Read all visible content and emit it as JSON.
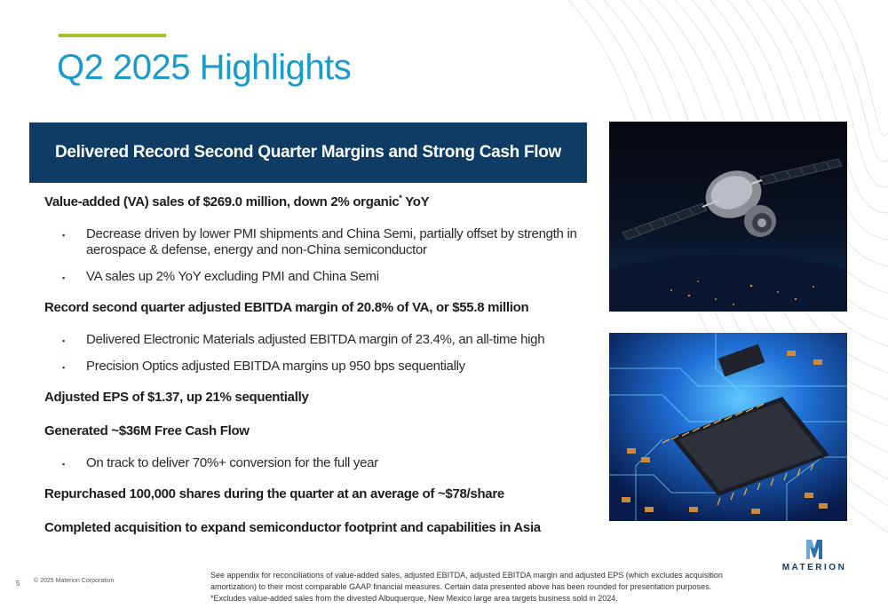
{
  "slide": {
    "title": "Q2 2025 Highlights",
    "banner": "Delivered Record Second Quarter Margins and Strong Cash Flow",
    "page_number": "5",
    "copyright": "© 2025 Materion Corporation"
  },
  "highlights": [
    {
      "heading_main": "Value-added (VA) sales of $269.0 million, down 2% organic",
      "heading_asterisk": "*",
      "heading_tail": " YoY",
      "bullets": [
        "Decrease driven by lower PMI shipments and China Semi, partially offset by strength in aerospace & defense, energy and non-China semiconductor",
        "VA sales up 2% YoY excluding PMI and China Semi"
      ]
    },
    {
      "heading": "Record second quarter adjusted EBITDA margin of 20.8% of VA, or $55.8 million",
      "bullets": [
        "Delivered Electronic Materials adjusted EBITDA margin of 23.4%, an all-time high",
        "Precision Optics adjusted EBITDA margins up 950 bps sequentially"
      ]
    },
    {
      "heading": "Adjusted EPS of $1.37, up 21% sequentially"
    },
    {
      "heading": "Generated ~$36M Free Cash Flow",
      "bullets": [
        "On track to deliver 70%+ conversion for the full year"
      ]
    },
    {
      "heading": "Repurchased 100,000 shares during the quarter at an average of ~$78/share"
    },
    {
      "heading": "Completed acquisition to expand semiconductor footprint and capabilities in Asia"
    }
  ],
  "bullet_marker": "▪",
  "footnote": {
    "line1": "See appendix for reconciliations of value-added sales, adjusted EBITDA, adjusted EBITDA margin and adjusted EPS (which excludes acquisition amortization) to their most comparable GAAP financial measures. Certain data presented above has been rounded for presentation purposes.",
    "line2": "*Excludes value-added sales from the divested Albuquerque, New Mexico large area targets business sold in 2024."
  },
  "logo": {
    "text": "MATERION"
  },
  "images": {
    "top": "satellite-over-earth",
    "bottom": "circuit-board-chip"
  },
  "colors": {
    "title": "#1a9bc9",
    "banner": "#0e3c64",
    "accent": "#a4bd2f"
  }
}
